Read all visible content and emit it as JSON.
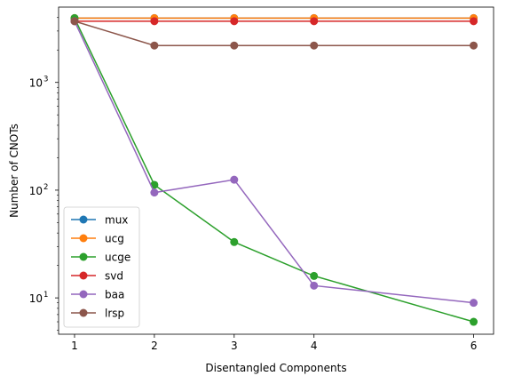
{
  "chart_data": {
    "type": "line",
    "title": "",
    "xlabel": "Disentangled Components",
    "ylabel": "Number of CNOTs",
    "yscale": "log",
    "x": [
      1,
      2,
      3,
      4,
      6
    ],
    "xticks": [
      "1",
      "2",
      "3",
      "4",
      "6"
    ],
    "xlim": [
      0.8,
      6.25
    ],
    "ylim": [
      4.6,
      5000
    ],
    "yticks": [
      {
        "value": 10,
        "base": "10",
        "exp": "1"
      },
      {
        "value": 100,
        "base": "10",
        "exp": "2"
      },
      {
        "value": 1000,
        "base": "10",
        "exp": "3"
      }
    ],
    "grid": false,
    "legend_position": "lower-left",
    "series": [
      {
        "name": "mux",
        "color": "#1f77b4",
        "values": [
          3950,
          3950,
          3950,
          3950,
          3950
        ]
      },
      {
        "name": "ucg",
        "color": "#ff7f0e",
        "values": [
          3950,
          3950,
          3950,
          3950,
          3950
        ]
      },
      {
        "name": "ucge",
        "color": "#2ca02c",
        "values": [
          3950,
          112,
          33,
          16,
          6
        ]
      },
      {
        "name": "svd",
        "color": "#d62728",
        "values": [
          3700,
          3700,
          3700,
          3700,
          3700
        ]
      },
      {
        "name": "baa",
        "color": "#9467bd",
        "values": [
          3700,
          95,
          125,
          13,
          9
        ]
      },
      {
        "name": "lrsp",
        "color": "#8c564b",
        "values": [
          3700,
          2200,
          2200,
          2200,
          2200
        ]
      }
    ]
  }
}
